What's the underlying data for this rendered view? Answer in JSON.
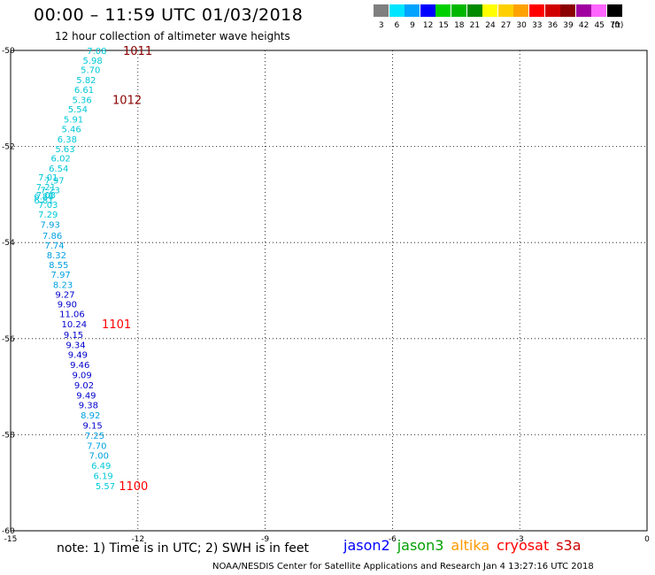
{
  "header": {
    "title": "00:00 – 11:59 UTC 01/03/2018",
    "subtitle": "12 hour collection of altimeter wave heights"
  },
  "color_scale": {
    "labels": [
      "3",
      "6",
      "9",
      "12",
      "15",
      "18",
      "21",
      "24",
      "27",
      "30",
      "33",
      "36",
      "39",
      "42",
      "45",
      "70"
    ],
    "unit": "(ft)",
    "colors": [
      "#7f7f7f",
      "#00e5ff",
      "#00a3ff",
      "#0000ff",
      "#00d000",
      "#00b800",
      "#008a00",
      "#ffff00",
      "#ffd000",
      "#ffa200",
      "#ff0000",
      "#d10000",
      "#8b0000",
      "#a000a0",
      "#ff66ff",
      "#000000"
    ]
  },
  "missions": [
    {
      "name": "jason2",
      "color": "#0000ff"
    },
    {
      "name": "jason3",
      "color": "#00a000"
    },
    {
      "name": "altika",
      "color": "#ff9900"
    },
    {
      "name": "cryosat",
      "color": "#ff0000"
    },
    {
      "name": "s3a",
      "color": "#cc0000"
    }
  ],
  "footer": {
    "note": "note:  1) Time is in UTC;  2) SWH is in feet",
    "credits": "NOAA/NESDIS Center for Satellite Applications and Research     Jan  4 13:27:16 UTC 2018"
  },
  "chart_data": {
    "type": "scatter",
    "title": "00:00 – 11:59 UTC 01/03/2018",
    "subtitle": "12 hour collection of altimeter wave heights",
    "xlim": [
      -15,
      0
    ],
    "ylim": [
      -60,
      -50
    ],
    "x_ticks": [
      "-15",
      "-12",
      "-9",
      "-6",
      "-3",
      "0"
    ],
    "y_ticks": [
      "-50",
      "-52",
      "-54",
      "-56",
      "-58",
      "-60"
    ],
    "grid": true,
    "points": [
      {
        "lon": -13.2,
        "lat": -50.0,
        "value": "7.08",
        "color": "#00c8d8"
      },
      {
        "lon": -13.3,
        "lat": -50.2,
        "value": "5.98",
        "color": "#00c8d8"
      },
      {
        "lon": -13.35,
        "lat": -50.4,
        "value": "5.70",
        "color": "#00c8d8"
      },
      {
        "lon": -13.45,
        "lat": -50.61,
        "value": "5.82",
        "color": "#00c8d8"
      },
      {
        "lon": -13.5,
        "lat": -50.81,
        "value": "6.61",
        "color": "#00c8d8"
      },
      {
        "lon": -13.55,
        "lat": -51.02,
        "value": "5.36",
        "color": "#00c8d8"
      },
      {
        "lon": -13.65,
        "lat": -51.22,
        "value": "5.54",
        "color": "#00c8d8"
      },
      {
        "lon": -13.75,
        "lat": -51.43,
        "value": "5.91",
        "color": "#00c8d8"
      },
      {
        "lon": -13.8,
        "lat": -51.63,
        "value": "5.46",
        "color": "#00c8d8"
      },
      {
        "lon": -13.9,
        "lat": -51.84,
        "value": "6.38",
        "color": "#00c8d8"
      },
      {
        "lon": -13.95,
        "lat": -52.04,
        "value": "5.63",
        "color": "#00c8d8"
      },
      {
        "lon": -14.05,
        "lat": -52.24,
        "value": "6.02",
        "color": "#00c8d8"
      },
      {
        "lon": -14.1,
        "lat": -52.45,
        "value": "6.54",
        "color": "#00c8d8"
      },
      {
        "lon": -14.35,
        "lat": -52.63,
        "value": "7.01",
        "color": "#00c8d8"
      },
      {
        "lon": -14.2,
        "lat": -52.7,
        "value": "7.97",
        "color": "#00c8d8"
      },
      {
        "lon": -14.4,
        "lat": -52.84,
        "value": "7.21",
        "color": "#00c8d8"
      },
      {
        "lon": -14.3,
        "lat": -52.9,
        "value": "7.23",
        "color": "#00c8d8"
      },
      {
        "lon": -14.45,
        "lat": -53.03,
        "value": "6.86",
        "color": "#00c8d8"
      },
      {
        "lon": -14.4,
        "lat": -53.0,
        "value": "7.08",
        "color": "#00c8d8"
      },
      {
        "lon": -14.45,
        "lat": -53.11,
        "value": "6.81",
        "color": "#00c8d8"
      },
      {
        "lon": -14.35,
        "lat": -53.2,
        "value": "7.03",
        "color": "#00c8d8"
      },
      {
        "lon": -14.35,
        "lat": -53.41,
        "value": "7.29",
        "color": "#00c8d8"
      },
      {
        "lon": -14.3,
        "lat": -53.62,
        "value": "7.93",
        "color": "#00a0e0"
      },
      {
        "lon": -14.25,
        "lat": -53.85,
        "value": "7.86",
        "color": "#00a0e0"
      },
      {
        "lon": -14.2,
        "lat": -54.05,
        "value": "7.74",
        "color": "#00a0e0"
      },
      {
        "lon": -14.15,
        "lat": -54.25,
        "value": "8.32",
        "color": "#00a0e0"
      },
      {
        "lon": -14.1,
        "lat": -54.46,
        "value": "8.55",
        "color": "#00a0e0"
      },
      {
        "lon": -14.05,
        "lat": -54.66,
        "value": "7.97",
        "color": "#00a0e0"
      },
      {
        "lon": -14.0,
        "lat": -54.87,
        "value": "8.23",
        "color": "#00a0e0"
      },
      {
        "lon": -13.95,
        "lat": -55.07,
        "value": "9.27",
        "color": "#0000cc"
      },
      {
        "lon": -13.9,
        "lat": -55.28,
        "value": "9.90",
        "color": "#0000cc"
      },
      {
        "lon": -13.85,
        "lat": -55.48,
        "value": "11.06",
        "color": "#0000cc"
      },
      {
        "lon": -13.8,
        "lat": -55.69,
        "value": "10.24",
        "color": "#0000cc"
      },
      {
        "lon": -13.75,
        "lat": -55.91,
        "value": "9.15",
        "color": "#0000cc"
      },
      {
        "lon": -13.7,
        "lat": -56.12,
        "value": "9.34",
        "color": "#0000cc"
      },
      {
        "lon": -13.65,
        "lat": -56.33,
        "value": "9.49",
        "color": "#0000cc"
      },
      {
        "lon": -13.6,
        "lat": -56.54,
        "value": "9.46",
        "color": "#0000cc"
      },
      {
        "lon": -13.55,
        "lat": -56.75,
        "value": "9.09",
        "color": "#0000cc"
      },
      {
        "lon": -13.5,
        "lat": -56.96,
        "value": "9.02",
        "color": "#0000cc"
      },
      {
        "lon": -13.45,
        "lat": -57.17,
        "value": "9.49",
        "color": "#0000cc"
      },
      {
        "lon": -13.4,
        "lat": -57.38,
        "value": "9.38",
        "color": "#0000cc"
      },
      {
        "lon": -13.35,
        "lat": -57.59,
        "value": "8.92",
        "color": "#00a0e0"
      },
      {
        "lon": -13.3,
        "lat": -57.8,
        "value": "9.15",
        "color": "#0000cc"
      },
      {
        "lon": -13.25,
        "lat": -58.01,
        "value": "7.25",
        "color": "#00a0e0"
      },
      {
        "lon": -13.2,
        "lat": -58.22,
        "value": "7.70",
        "color": "#00a0e0"
      },
      {
        "lon": -13.15,
        "lat": -58.43,
        "value": "7.00",
        "color": "#00a0e0"
      },
      {
        "lon": -13.1,
        "lat": -58.64,
        "value": "6.49",
        "color": "#00c8d8"
      },
      {
        "lon": -13.05,
        "lat": -58.85,
        "value": "6.19",
        "color": "#00c8d8"
      },
      {
        "lon": -13.0,
        "lat": -59.06,
        "value": "5.57",
        "color": "#00c8d8"
      }
    ],
    "time_labels": [
      {
        "lon": -12.35,
        "lat": -50.0,
        "text": "1011",
        "color": "#8b0000"
      },
      {
        "lon": -12.6,
        "lat": -51.02,
        "text": "1012",
        "color": "#8b0000"
      },
      {
        "lon": -12.85,
        "lat": -55.69,
        "text": "1101",
        "color": "#ff0000"
      },
      {
        "lon": -12.45,
        "lat": -59.06,
        "text": "1100",
        "color": "#ff0000"
      }
    ]
  }
}
